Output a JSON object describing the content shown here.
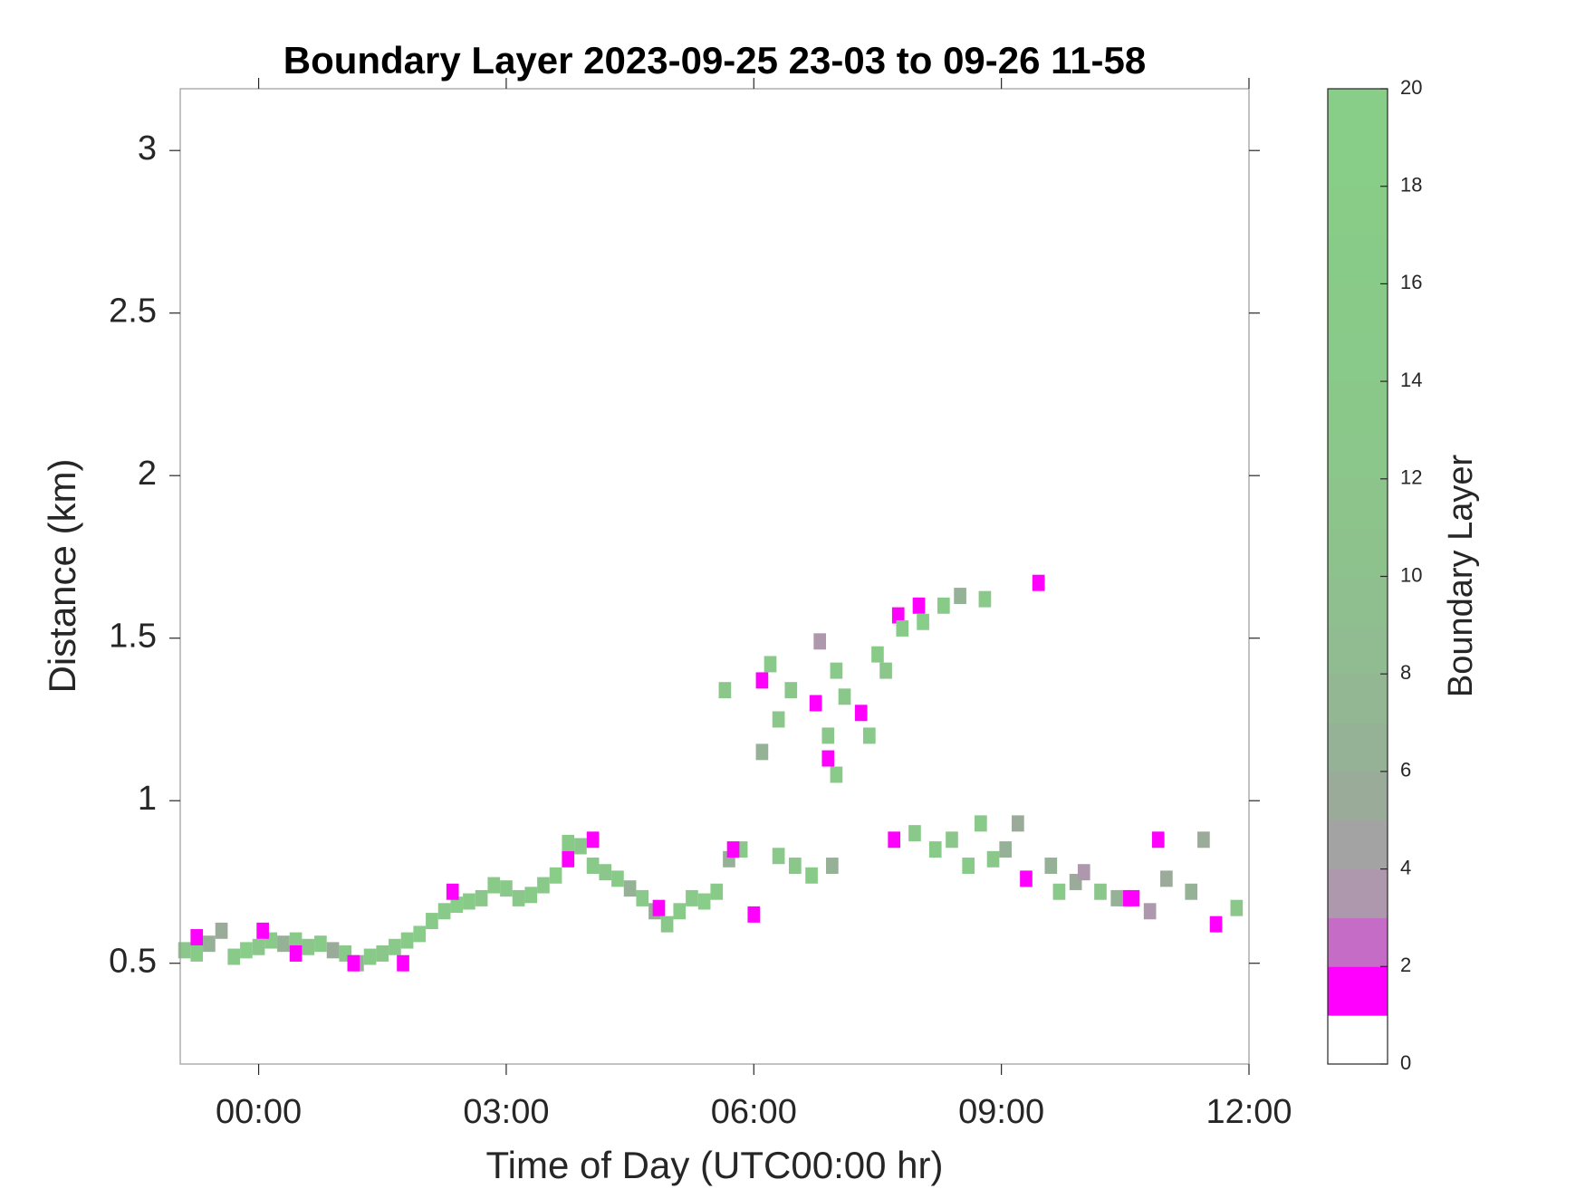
{
  "chart_data": {
    "type": "heatmap",
    "title": "Boundary Layer 2023-09-25 23-03 to 09-26 11-58",
    "x_label": "Time of Day (UTC00:00 hr)",
    "y_label": "Distance (km)",
    "x": [
      -0.9,
      -0.75,
      -0.6,
      -0.45,
      -0.3,
      -0.15,
      0,
      0.15,
      0.3,
      0.45,
      0.6,
      0.75,
      0.9,
      1.05,
      1.2,
      1.35,
      1.5,
      1.65,
      1.8,
      1.95,
      2.1,
      2.25,
      2.4,
      2.55,
      2.7,
      2.85,
      3.0,
      3.15,
      3.3,
      3.45,
      3.6,
      3.75,
      3.9,
      4.05,
      4.2,
      4.35,
      4.5,
      4.65,
      4.8,
      4.95,
      5.1,
      5.25,
      5.4,
      5.55,
      5.7,
      5.85,
      -0.75,
      0.05,
      0.45,
      1.15,
      1.75,
      2.35,
      3.75,
      4.05,
      4.85,
      5.75,
      6.0,
      6.1,
      6.75,
      6.9,
      7.3,
      7.75,
      8.0,
      9.45,
      7.7,
      10.5,
      10.6,
      11.6,
      9.3,
      10.9,
      5.65,
      6.2,
      6.45,
      6.1,
      6.3,
      6.8,
      7.0,
      7.1,
      7.4,
      7.5,
      7.6,
      7.8,
      8.05,
      8.3,
      8.5,
      8.8,
      7.0,
      6.9,
      6.3,
      6.5,
      6.7,
      6.95,
      7.95,
      8.2,
      8.4,
      8.6,
      8.75,
      8.9,
      9.05,
      9.2,
      9.6,
      9.9,
      10.2,
      10.4,
      10.8,
      11.0,
      11.3,
      11.45,
      11.85,
      9.7,
      10.0
    ],
    "y": [
      0.54,
      0.53,
      0.56,
      0.6,
      0.52,
      0.54,
      0.55,
      0.57,
      0.56,
      0.57,
      0.55,
      0.56,
      0.54,
      0.53,
      0.5,
      0.52,
      0.53,
      0.55,
      0.57,
      0.59,
      0.63,
      0.66,
      0.68,
      0.69,
      0.7,
      0.74,
      0.73,
      0.7,
      0.71,
      0.74,
      0.77,
      0.87,
      0.86,
      0.8,
      0.78,
      0.76,
      0.73,
      0.7,
      0.66,
      0.62,
      0.66,
      0.7,
      0.69,
      0.72,
      0.82,
      0.85,
      0.58,
      0.6,
      0.53,
      0.5,
      0.5,
      0.72,
      0.82,
      0.88,
      0.67,
      0.85,
      0.65,
      1.37,
      1.3,
      1.13,
      1.27,
      1.57,
      1.6,
      1.67,
      0.88,
      0.7,
      0.7,
      0.62,
      0.76,
      0.88,
      1.34,
      1.42,
      1.34,
      1.15,
      1.25,
      1.49,
      1.4,
      1.32,
      1.2,
      1.45,
      1.4,
      1.53,
      1.55,
      1.6,
      1.63,
      1.62,
      1.08,
      1.2,
      0.83,
      0.8,
      0.77,
      0.8,
      0.9,
      0.85,
      0.88,
      0.8,
      0.93,
      0.82,
      0.85,
      0.93,
      0.8,
      0.75,
      0.72,
      0.7,
      0.66,
      0.76,
      0.72,
      0.88,
      0.67,
      0.72,
      0.78
    ],
    "values": [
      12,
      16,
      6,
      5,
      14,
      18,
      12,
      16,
      6,
      14,
      12,
      16,
      5,
      14,
      6,
      16,
      12,
      14,
      16,
      18,
      16,
      14,
      18,
      16,
      12,
      16,
      14,
      12,
      16,
      14,
      18,
      16,
      12,
      14,
      12,
      16,
      6,
      14,
      5,
      12,
      16,
      14,
      18,
      16,
      6,
      14,
      1,
      1,
      1,
      1,
      1,
      1,
      1,
      1,
      1,
      1,
      1,
      1,
      1,
      1,
      1,
      1,
      1,
      1,
      1,
      1,
      1,
      1,
      1,
      1,
      12,
      14,
      12,
      6,
      12,
      3,
      14,
      12,
      14,
      16,
      12,
      16,
      18,
      16,
      6,
      14,
      14,
      12,
      14,
      12,
      16,
      6,
      14,
      16,
      12,
      16,
      14,
      12,
      6,
      5,
      6,
      5,
      12,
      6,
      3,
      5,
      6,
      5,
      12,
      14,
      3
    ],
    "xlim": [
      -0.95,
      12
    ],
    "xticks": [
      {
        "value": 0,
        "label": "00:00"
      },
      {
        "value": 3,
        "label": "03:00"
      },
      {
        "value": 6,
        "label": "06:00"
      },
      {
        "value": 9,
        "label": "09:00"
      },
      {
        "value": 12,
        "label": "12:00"
      }
    ],
    "ylim": [
      0.19,
      3.19
    ],
    "yticks": [
      0.5,
      1,
      1.5,
      2,
      2.5,
      3
    ],
    "colorbar": {
      "label": "Boundary Layer",
      "lim": [
        0,
        20
      ],
      "ticks": [
        0,
        2,
        4,
        6,
        8,
        10,
        12,
        14,
        16,
        18,
        20
      ],
      "colors": [
        "#ffffff",
        "#ff00ff",
        "#c46cc6",
        "#ae98ae",
        "#a2a3a2",
        "#9aab9a",
        "#96b296",
        "#93b793",
        "#91bb91",
        "#8fbf8f",
        "#8dc28d",
        "#8cc48c",
        "#8bc68b",
        "#8ac88a",
        "#89c989",
        "#89ca89",
        "#88cb88",
        "#88cc88",
        "#88cd88",
        "#88ce88"
      ]
    }
  }
}
